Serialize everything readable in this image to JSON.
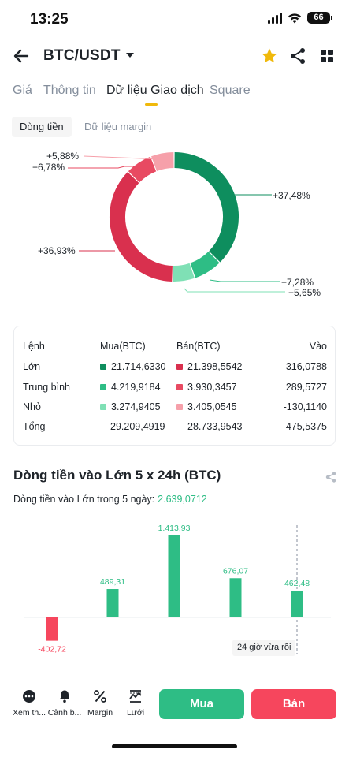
{
  "status_bar": {
    "time": "13:25",
    "battery": "66"
  },
  "header": {
    "pair": "BTC/USDT",
    "favorite_color": "#f0b90b"
  },
  "tabs": [
    {
      "label": "Giá",
      "active": false
    },
    {
      "label": "Thông tin",
      "active": false
    },
    {
      "label": "Dữ liệu Giao dịch",
      "active": true
    },
    {
      "label": "Square",
      "active": false
    }
  ],
  "subtabs": {
    "active": "Dòng tiền",
    "inactive": "Dữ liệu margin"
  },
  "colors": {
    "buy_large": "#0e8e5e",
    "buy_medium": "#2ebd85",
    "buy_small": "#7fe0b5",
    "sell_large": "#d9304e",
    "sell_medium": "#e84a62",
    "sell_small": "#f6a0aa",
    "green": "#2ebd85",
    "red": "#f6465d",
    "accent": "#f0b90b"
  },
  "donut": {
    "segments": [
      {
        "label": "+37,48%",
        "value": 37.48,
        "kind": "buy_large"
      },
      {
        "label": "+7,28%",
        "value": 7.28,
        "kind": "buy_medium"
      },
      {
        "label": "+5,65%",
        "value": 5.65,
        "kind": "buy_small"
      },
      {
        "label": "+36,93%",
        "value": 36.93,
        "kind": "sell_large"
      },
      {
        "label": "+6,78%",
        "value": 6.78,
        "kind": "sell_medium"
      },
      {
        "label": "+5,88%",
        "value": 5.88,
        "kind": "sell_small"
      }
    ]
  },
  "flow_table": {
    "headers": {
      "order": "Lệnh",
      "buy": "Mua(BTC)",
      "sell": "Bán(BTC)",
      "inflow": "Vào"
    },
    "rows": [
      {
        "order": "Lớn",
        "buy": "21.714,6330",
        "sell": "21.398,5542",
        "inflow": "316,0788"
      },
      {
        "order": "Trung bình",
        "buy": "4.219,9184",
        "sell": "3.930,3457",
        "inflow": "289,5727"
      },
      {
        "order": "Nhỏ",
        "buy": "3.274,9405",
        "sell": "3.405,0545",
        "inflow": "-130,1140"
      }
    ],
    "total": {
      "order": "Tổng",
      "buy": "29.209,4919",
      "sell": "28.733,9543",
      "inflow": "475,5375"
    }
  },
  "inflow_section": {
    "title": "Dòng tiền vào Lớn 5 x 24h (BTC)",
    "summary_label": "Dòng tiền vào Lớn trong 5 ngày:",
    "summary_value": "2.639,0712",
    "tooltip": "24 giờ vừa rồi"
  },
  "chart_data": {
    "type": "bar",
    "title": "Dòng tiền vào Lớn 5 x 24h (BTC)",
    "categories": [
      "",
      "",
      "",
      "",
      ""
    ],
    "values": [
      -402.72,
      489.31,
      1413.93,
      676.07,
      462.48
    ],
    "labels": [
      "-402,72",
      "489,31",
      "1.413,93",
      "676,07",
      "462,48"
    ],
    "ylim": [
      -500,
      1500
    ]
  },
  "bottom_bar": {
    "more": "Xem th...",
    "alert": "Cảnh b...",
    "margin": "Margin",
    "grid": "Lưới",
    "buy": "Mua",
    "sell": "Bán"
  }
}
